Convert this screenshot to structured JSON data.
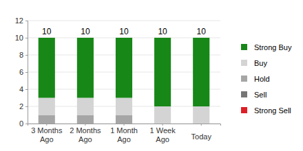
{
  "chart_data": {
    "type": "bar",
    "stacked": true,
    "grid": true,
    "legend": "right",
    "categories": [
      "3 Months Ago",
      "2 Months Ago",
      "1 Month Ago",
      "1 Week Ago",
      "Today"
    ],
    "series": [
      {
        "name": "Strong Buy",
        "color": "#178717",
        "values": [
          7,
          7,
          7,
          8,
          8
        ]
      },
      {
        "name": "Buy",
        "color": "#d4d4d4",
        "values": [
          2,
          2,
          2,
          2,
          2
        ]
      },
      {
        "name": "Hold",
        "color": "#a6a6a6",
        "values": [
          1,
          1,
          1,
          0,
          0
        ]
      },
      {
        "name": "Sell",
        "color": "#767676",
        "values": [
          0,
          0,
          0,
          0,
          0
        ]
      },
      {
        "name": "Strong Sell",
        "color": "#dd1f26",
        "values": [
          0,
          0,
          0,
          0,
          0
        ]
      }
    ],
    "totals": [
      10,
      10,
      10,
      10,
      10
    ],
    "ylim": [
      0,
      12
    ],
    "yticks": [
      0,
      2,
      4,
      6,
      8,
      10,
      12
    ]
  }
}
